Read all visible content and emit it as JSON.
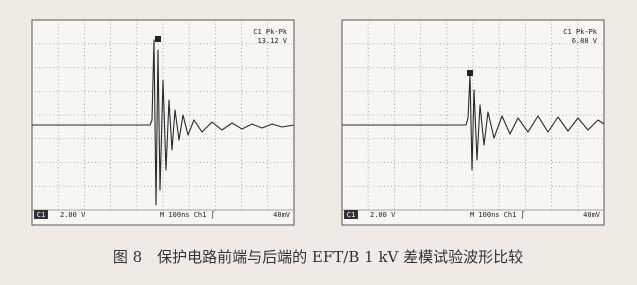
{
  "figures": [
    {
      "measurement_label": "C1 Pk-Pk",
      "measurement_value": "13.12 V",
      "channel": "C1",
      "volts_per_div": "2.00 V",
      "timebase": "M 100ns Ch1 ∫",
      "trigger_level": "40mV"
    },
    {
      "measurement_label": "C1 Pk-Pk",
      "measurement_value": "6.88 V",
      "channel": "C1",
      "volts_per_div": "2.00 V",
      "timebase": "M 100ns Ch1 ∫",
      "trigger_level": "40mV"
    }
  ],
  "caption": "图 8　保护电路前端与后端的 EFT/B 1 kV 差模试验波形比较"
}
